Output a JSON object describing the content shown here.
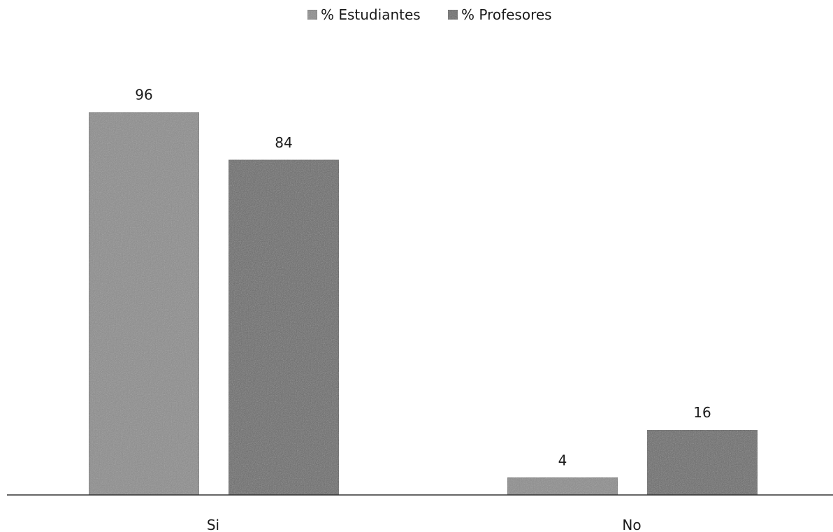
{
  "chart_data": {
    "type": "bar",
    "categories": [
      "Si",
      "No"
    ],
    "series": [
      {
        "name": "% Estudiantes",
        "values": [
          96,
          4
        ],
        "color": "#8c8c8c"
      },
      {
        "name": "% Profesores",
        "values": [
          84,
          16
        ],
        "color": "#6a6a6a"
      }
    ],
    "ylim": [
      0,
      100
    ],
    "grid": false,
    "legend_position": "top-center",
    "data_labels": true
  }
}
